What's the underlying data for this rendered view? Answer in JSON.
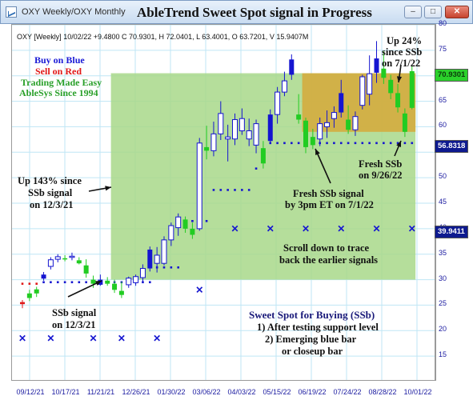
{
  "window": {
    "title": "OXY Weekly/OXY Monthly",
    "heading": "AbleTrend Sweet Spot signal in Progress",
    "buttons": {
      "minimize": "–",
      "maximize": "□",
      "close": "✕"
    }
  },
  "info_line": "OXY [Weekly] 10/02/22  +9.4800 C 70.9301, H 72.0401, L 63.4001, O 63.7201, V 15.9407M",
  "legend": {
    "buy": "Buy on Blue",
    "sell": "Sell on Red",
    "tagline": "Trading Made Easy",
    "brand": "AbleSys Since 1994"
  },
  "annotations": {
    "up143": [
      "Up 143% since",
      "SSb signal",
      "on 12/3/21"
    ],
    "ssb_signal": [
      "SSb signal",
      "on 12/3/21"
    ],
    "up24": [
      "Up 24%",
      "since SSb",
      "on 7/1/22"
    ],
    "fresh_sep": [
      "Fresh SSb",
      "on 9/26/22"
    ],
    "fresh_jul": [
      "Fresh SSb signal",
      "by 3pm ET on 7/1/22"
    ],
    "scroll": [
      "Scroll down to trace",
      "back the earlier signals"
    ],
    "sweet_spot_title": "Sweet Spot for Buying (SSb)",
    "sweet_spot_items": [
      "1) After testing support level",
      "2) Emerging blue bar",
      "or closeup bar"
    ]
  },
  "price_boxes": {
    "last": "70.9301",
    "stop": "56.8318",
    "x_level": "39.9411"
  },
  "colors": {
    "blue": "#1515d0",
    "red": "#e01818",
    "green": "#22cc22",
    "green_zone": "#a8d88a",
    "gold_zone": "#d6a93a"
  },
  "chart_data": {
    "type": "candlestick",
    "yaxis": {
      "range": [
        10,
        80
      ],
      "ticks": [
        15,
        20,
        25,
        30,
        35,
        40,
        45,
        50,
        55,
        60,
        65,
        70,
        75,
        80
      ],
      "position": "right"
    },
    "xaxis": {
      "labels": [
        "09/12/21",
        "10/17/21",
        "11/21/21",
        "12/26/21",
        "01/30/22",
        "03/06/22",
        "04/03/22",
        "05/15/22",
        "06/19/22",
        "07/24/22",
        "08/28/22",
        "10/01/22"
      ]
    },
    "candles": [
      {
        "o": 25.2,
        "h": 26.0,
        "l": 24.4,
        "c": 25.6,
        "col": "red"
      },
      {
        "o": 26.4,
        "h": 28.0,
        "l": 25.8,
        "c": 27.3,
        "col": "green"
      },
      {
        "o": 27.3,
        "h": 28.6,
        "l": 26.6,
        "c": 28.1,
        "col": "green"
      },
      {
        "o": 30.2,
        "h": 31.5,
        "l": 29.8,
        "c": 31.0,
        "col": "blue"
      },
      {
        "o": 32.6,
        "h": 34.4,
        "l": 32.0,
        "c": 33.9,
        "col": "hollow"
      },
      {
        "o": 34.0,
        "h": 35.0,
        "l": 33.4,
        "c": 34.5,
        "col": "hollow"
      },
      {
        "o": 34.2,
        "h": 34.8,
        "l": 33.6,
        "c": 34.0,
        "col": "green"
      },
      {
        "o": 34.5,
        "h": 35.3,
        "l": 33.8,
        "c": 34.6,
        "col": "hollow"
      },
      {
        "o": 33.8,
        "h": 34.4,
        "l": 33.0,
        "c": 33.2,
        "col": "green"
      },
      {
        "o": 32.8,
        "h": 34.0,
        "l": 30.4,
        "c": 31.2,
        "col": "green"
      },
      {
        "o": 29.2,
        "h": 30.8,
        "l": 28.4,
        "c": 30.0,
        "col": "green"
      },
      {
        "o": 30.0,
        "h": 31.0,
        "l": 28.8,
        "c": 29.0,
        "col": "blue"
      },
      {
        "o": 29.8,
        "h": 30.5,
        "l": 28.8,
        "c": 29.2,
        "col": "green"
      },
      {
        "o": 29.2,
        "h": 30.0,
        "l": 27.4,
        "c": 28.0,
        "col": "green"
      },
      {
        "o": 27.8,
        "h": 29.6,
        "l": 26.4,
        "c": 27.0,
        "col": "green"
      },
      {
        "o": 29.0,
        "h": 30.6,
        "l": 28.4,
        "c": 30.3,
        "col": "hollow"
      },
      {
        "o": 29.4,
        "h": 31.0,
        "l": 28.8,
        "c": 30.6,
        "col": "hollow"
      },
      {
        "o": 30.4,
        "h": 33.0,
        "l": 29.6,
        "c": 32.2,
        "col": "hollow"
      },
      {
        "o": 32.2,
        "h": 36.5,
        "l": 31.6,
        "c": 35.9,
        "col": "blue"
      },
      {
        "o": 34.8,
        "h": 36.4,
        "l": 31.4,
        "c": 33.2,
        "col": "hollow"
      },
      {
        "o": 33.2,
        "h": 38.5,
        "l": 32.8,
        "c": 37.8,
        "col": "hollow"
      },
      {
        "o": 37.8,
        "h": 41.2,
        "l": 36.6,
        "c": 40.6,
        "col": "hollow"
      },
      {
        "o": 40.2,
        "h": 43.0,
        "l": 38.6,
        "c": 42.3,
        "col": "hollow"
      },
      {
        "o": 41.8,
        "h": 42.4,
        "l": 39.2,
        "c": 40.0,
        "col": "green"
      },
      {
        "o": 40.0,
        "h": 41.2,
        "l": 38.0,
        "c": 38.8,
        "col": "green"
      },
      {
        "o": 40.0,
        "h": 57.8,
        "l": 39.6,
        "c": 56.8,
        "col": "hollow"
      },
      {
        "o": 56.0,
        "h": 60.2,
        "l": 53.6,
        "c": 55.3,
        "col": "green"
      },
      {
        "o": 55.3,
        "h": 61.0,
        "l": 54.2,
        "c": 58.6,
        "col": "hollow"
      },
      {
        "o": 58.6,
        "h": 65.0,
        "l": 57.4,
        "c": 62.6,
        "col": "hollow"
      },
      {
        "o": 58.0,
        "h": 60.4,
        "l": 53.2,
        "c": 57.6,
        "col": "hollow"
      },
      {
        "o": 57.6,
        "h": 62.6,
        "l": 56.4,
        "c": 61.4,
        "col": "hollow"
      },
      {
        "o": 61.6,
        "h": 63.6,
        "l": 58.4,
        "c": 59.2,
        "col": "hollow"
      },
      {
        "o": 59.2,
        "h": 61.6,
        "l": 56.2,
        "c": 57.6,
        "col": "hollow"
      },
      {
        "o": 56.4,
        "h": 61.4,
        "l": 54.8,
        "c": 60.6,
        "col": "hollow"
      },
      {
        "o": 55.8,
        "h": 57.2,
        "l": 51.8,
        "c": 52.8,
        "col": "green"
      },
      {
        "o": 57.2,
        "h": 63.4,
        "l": 56.6,
        "c": 62.4,
        "col": "blue"
      },
      {
        "o": 62.4,
        "h": 67.8,
        "l": 60.6,
        "c": 66.8,
        "col": "hollow"
      },
      {
        "o": 66.8,
        "h": 70.8,
        "l": 66.0,
        "c": 69.0,
        "col": "hollow"
      },
      {
        "o": 70.2,
        "h": 74.2,
        "l": 69.2,
        "c": 73.2,
        "col": "blue"
      },
      {
        "o": 62.4,
        "h": 66.4,
        "l": 60.6,
        "c": 61.4,
        "col": "green"
      },
      {
        "o": 61.2,
        "h": 61.8,
        "l": 54.8,
        "c": 56.0,
        "col": "green"
      },
      {
        "o": 56.4,
        "h": 59.6,
        "l": 55.6,
        "c": 58.0,
        "col": "green"
      },
      {
        "o": 57.6,
        "h": 61.8,
        "l": 56.2,
        "c": 60.6,
        "col": "hollow"
      },
      {
        "o": 60.0,
        "h": 63.2,
        "l": 57.8,
        "c": 60.8,
        "col": "hollow"
      },
      {
        "o": 61.6,
        "h": 64.0,
        "l": 59.8,
        "c": 62.8,
        "col": "hollow"
      },
      {
        "o": 62.8,
        "h": 69.2,
        "l": 61.8,
        "c": 66.6,
        "col": "blue"
      },
      {
        "o": 61.4,
        "h": 64.2,
        "l": 58.6,
        "c": 59.4,
        "col": "green"
      },
      {
        "o": 59.4,
        "h": 63.0,
        "l": 58.2,
        "c": 62.0,
        "col": "hollow"
      },
      {
        "o": 64.2,
        "h": 70.2,
        "l": 63.4,
        "c": 69.8,
        "col": "hollow"
      },
      {
        "o": 66.4,
        "h": 74.0,
        "l": 64.2,
        "c": 70.4,
        "col": "hollow"
      },
      {
        "o": 70.6,
        "h": 76.8,
        "l": 68.6,
        "c": 73.4,
        "col": "blue"
      },
      {
        "o": 71.4,
        "h": 74.8,
        "l": 68.4,
        "c": 69.6,
        "col": "green"
      },
      {
        "o": 69.2,
        "h": 70.2,
        "l": 65.4,
        "c": 66.6,
        "col": "green"
      },
      {
        "o": 66.6,
        "h": 68.4,
        "l": 62.8,
        "c": 63.8,
        "col": "green"
      },
      {
        "o": 62.6,
        "h": 63.6,
        "l": 58.0,
        "c": 59.0,
        "col": "green"
      },
      {
        "o": 63.7,
        "h": 72.0,
        "l": 63.4,
        "c": 70.9,
        "col": "green"
      }
    ],
    "support_dots": [
      [
        3,
        29.5
      ],
      [
        4,
        29.5
      ],
      [
        5,
        29.5
      ],
      [
        6,
        29.5
      ],
      [
        7,
        29.5
      ],
      [
        8,
        29.5
      ],
      [
        9,
        29.5
      ],
      [
        10,
        29.5
      ],
      [
        11,
        29.5
      ],
      [
        12,
        29.5
      ],
      [
        13,
        29.5
      ],
      [
        14,
        29.5
      ],
      [
        15,
        29.5
      ],
      [
        16,
        29.5
      ],
      [
        17,
        29.5
      ],
      [
        18,
        29.5
      ],
      [
        19,
        32.4
      ],
      [
        20,
        32.4
      ],
      [
        21,
        32.4
      ],
      [
        22,
        32.4
      ],
      [
        23,
        41.5
      ],
      [
        24,
        41.5
      ],
      [
        25,
        41.5
      ],
      [
        26,
        41.5
      ],
      [
        27,
        47.6
      ],
      [
        28,
        47.6
      ],
      [
        29,
        47.6
      ],
      [
        30,
        47.6
      ],
      [
        31,
        47.6
      ],
      [
        32,
        47.6
      ],
      [
        33,
        51.8
      ],
      [
        34,
        54.5
      ],
      [
        35,
        56.8
      ],
      [
        36,
        56.8
      ],
      [
        37,
        56.8
      ],
      [
        38,
        56.8
      ],
      [
        39,
        56.8
      ],
      [
        40,
        56.8
      ],
      [
        41,
        56.8
      ],
      [
        42,
        56.8
      ],
      [
        43,
        56.8
      ],
      [
        44,
        56.8
      ],
      [
        45,
        56.8
      ],
      [
        46,
        56.8
      ],
      [
        47,
        56.8
      ],
      [
        48,
        56.8
      ],
      [
        49,
        56.8
      ],
      [
        50,
        56.8
      ],
      [
        51,
        56.8
      ],
      [
        52,
        56.8
      ],
      [
        53,
        56.8
      ],
      [
        54,
        56.8
      ],
      [
        55,
        56.8
      ]
    ],
    "red_dots": [
      [
        0,
        29.2
      ],
      [
        1,
        29.2
      ],
      [
        2,
        29.2
      ]
    ],
    "x_marks": [
      [
        0,
        18.5
      ],
      [
        4,
        18.5
      ],
      [
        10,
        18.5
      ],
      [
        14,
        18.5
      ],
      [
        19,
        18.5
      ],
      [
        25,
        28.0
      ],
      [
        30,
        40.0
      ],
      [
        35,
        40.0
      ],
      [
        40,
        40.0
      ],
      [
        45,
        40.0
      ],
      [
        50,
        40.0
      ],
      [
        55,
        40.0
      ]
    ],
    "zones": [
      {
        "name": "ssb_green",
        "from": 13,
        "to": 55,
        "low": 30.0,
        "high": 70.5
      },
      {
        "name": "ssb_gold",
        "from": 40,
        "to": 55,
        "low": 59.0,
        "high": 70.5
      }
    ]
  }
}
